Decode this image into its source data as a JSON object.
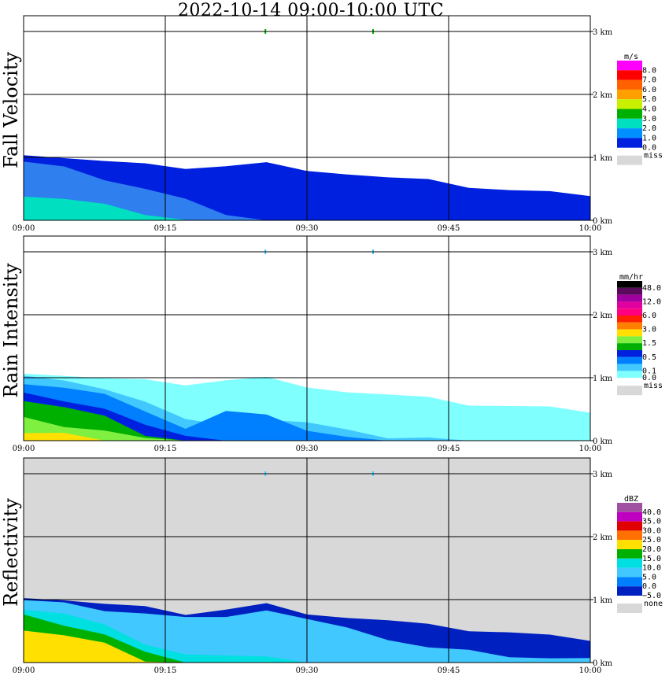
{
  "title": "2022-10-14   09:00-10:00 UTC",
  "chart_data": [
    {
      "type": "heatmap",
      "ylabel": "Fall Velocity",
      "x_ticks": [
        "09:00",
        "09:15",
        "09:30",
        "09:45",
        "10:00"
      ],
      "y_ticks": [
        "0 km",
        "1 km",
        "2 km",
        "3 km"
      ],
      "ylim_km": [
        0,
        3.15
      ],
      "grid": true,
      "background_color": "#ffffff",
      "legend": {
        "unit": "m/s",
        "placement": "right",
        "bins": [
          {
            "label": "8.0",
            "color": "#ff00ff"
          },
          {
            "label": "7.0",
            "color": "#ff0000"
          },
          {
            "label": "6.0",
            "color": "#ff6000"
          },
          {
            "label": "5.0",
            "color": "#ffa000"
          },
          {
            "label": "4.0",
            "color": "#c8f000"
          },
          {
            "label": "3.0",
            "color": "#00b000"
          },
          {
            "label": "2.0",
            "color": "#00e0c0"
          },
          {
            "label": "1.0",
            "color": "#0090ff"
          },
          {
            "label": "0.0",
            "color": "#0020e0"
          }
        ],
        "missing_label": "miss",
        "missing_color": "#d8d8d8"
      },
      "layers": [
        {
          "color": "#0020e0",
          "top_km": [
            1.07,
            1.0,
            0.93,
            0.87,
            0.84,
            0.86,
            0.9,
            0.82,
            0.74,
            0.67,
            0.62,
            0.54,
            0.48,
            0.44,
            0.42
          ],
          "bottom_km": 0
        },
        {
          "color": "#2f7fef",
          "top_km": [
            0.92,
            0.82,
            0.66,
            0.5,
            0.32,
            0.12,
            0.0,
            0,
            0,
            0,
            0,
            0,
            0,
            0,
            0
          ],
          "bottom_km": 0
        },
        {
          "color": "#00e0c0",
          "top_km": [
            0.4,
            0.34,
            0.24,
            0.12,
            0.02,
            0,
            0,
            0,
            0,
            0,
            0,
            0,
            0,
            0,
            0
          ],
          "bottom_km": 0
        }
      ],
      "sparse_marks": [
        {
          "time": "09:25.6",
          "height_km": 3.0,
          "color": "#00b000"
        },
        {
          "time": "09:37",
          "height_km": 3.0,
          "color": "#00b000"
        }
      ]
    },
    {
      "type": "heatmap",
      "ylabel": "Rain Intensity",
      "x_ticks": [
        "09:00",
        "09:15",
        "09:30",
        "09:45",
        "10:00"
      ],
      "y_ticks": [
        "0 km",
        "1 km",
        "2 km",
        "3 km"
      ],
      "ylim_km": [
        0,
        3.15
      ],
      "grid": true,
      "background_color": "#ffffff",
      "legend": {
        "unit": "mm/hr",
        "placement": "right",
        "bins": [
          {
            "label": "48.0",
            "color": "#000000"
          },
          {
            "label": "",
            "color": "#5a0a5a"
          },
          {
            "label": "12.0",
            "color": "#a000a0"
          },
          {
            "label": "",
            "color": "#e000a0"
          },
          {
            "label": "6.0",
            "color": "#ff0080"
          },
          {
            "label": "",
            "color": "#ff2000"
          },
          {
            "label": "3.0",
            "color": "#ff8000"
          },
          {
            "label": "",
            "color": "#ffe000"
          },
          {
            "label": "1.5",
            "color": "#80f040"
          },
          {
            "label": "",
            "color": "#00b000"
          },
          {
            "label": "0.5",
            "color": "#0020e0"
          },
          {
            "label": "",
            "color": "#0080ff"
          },
          {
            "label": "0.1",
            "color": "#40c8ff"
          },
          {
            "label": "0.0",
            "color": "#80ffff"
          }
        ],
        "missing_label": "miss",
        "missing_color": "#d8d8d8"
      },
      "layers": [
        {
          "color": "#80ffff",
          "top_km": [
            1.1,
            1.04,
            0.98,
            0.94,
            0.9,
            0.96,
            0.99,
            0.88,
            0.78,
            0.72,
            0.66,
            0.58,
            0.55,
            0.52,
            0.48
          ],
          "bottom_km": 0
        },
        {
          "color": "#40c8ff",
          "top_km": [
            1.02,
            0.92,
            0.84,
            0.62,
            0.32,
            0.28,
            0.34,
            0.28,
            0.14,
            0.06,
            0.05,
            0.0,
            0,
            0,
            0
          ],
          "bottom_km": 0
        },
        {
          "color": "#0080ff",
          "top_km": [
            0.92,
            0.84,
            0.72,
            0.5,
            0.2,
            0.46,
            0.38,
            0.18,
            0.06,
            0,
            0,
            0,
            0,
            0,
            0
          ],
          "bottom_km": 0
        },
        {
          "color": "#0020e0",
          "top_km": [
            0.74,
            0.66,
            0.52,
            0.24,
            0.04,
            0,
            0,
            0,
            0,
            0,
            0,
            0,
            0,
            0,
            0
          ],
          "bottom_km": 0
        },
        {
          "color": "#00b000",
          "top_km": [
            0.64,
            0.52,
            0.36,
            0.1,
            0,
            0,
            0,
            0,
            0,
            0,
            0,
            0,
            0,
            0,
            0
          ],
          "bottom_km": 0
        },
        {
          "color": "#80f040",
          "top_km": [
            0.34,
            0.24,
            0.16,
            0.02,
            0,
            0,
            0,
            0,
            0,
            0,
            0,
            0,
            0,
            0,
            0
          ],
          "bottom_km": 0
        },
        {
          "color": "#ffe000",
          "top_km": [
            0.12,
            0.1,
            0.0,
            0,
            0,
            0,
            0,
            0,
            0,
            0,
            0,
            0,
            0,
            0,
            0
          ],
          "bottom_km": 0
        }
      ],
      "sparse_marks": [
        {
          "time": "09:25.6",
          "height_km": 3.0,
          "color": "#40c8ff"
        },
        {
          "time": "09:37",
          "height_km": 3.0,
          "color": "#40c8ff"
        }
      ]
    },
    {
      "type": "heatmap",
      "ylabel": "Reflectivity",
      "x_ticks": [
        "09:00",
        "09:15",
        "09:30",
        "09:45",
        "10:00"
      ],
      "y_ticks": [
        "0 km",
        "1 km",
        "2 km",
        "3 km"
      ],
      "ylim_km": [
        0,
        3.15
      ],
      "grid": true,
      "background_color": "#d8d8d8",
      "legend": {
        "unit": "dBZ",
        "placement": "right",
        "bins": [
          {
            "label": "40.0",
            "color": "#a050a0"
          },
          {
            "label": "35.0",
            "color": "#c000c0"
          },
          {
            "label": "30.0",
            "color": "#e00000"
          },
          {
            "label": "25.0",
            "color": "#ff7000"
          },
          {
            "label": "20.0",
            "color": "#ffe000"
          },
          {
            "label": "15.0",
            "color": "#00b000"
          },
          {
            "label": "10.0",
            "color": "#00e0e0"
          },
          {
            "label": "5.0",
            "color": "#40c8ff"
          },
          {
            "label": "0.0",
            "color": "#0080ff"
          },
          {
            "label": "−5.0",
            "color": "#0020c0"
          }
        ],
        "missing_label": "none",
        "missing_color": "#d8d8d8"
      },
      "layers": [
        {
          "color": "#0020c0",
          "top_km": [
            1.06,
            1.0,
            0.92,
            0.86,
            0.78,
            0.84,
            0.92,
            0.8,
            0.72,
            0.66,
            0.58,
            0.52,
            0.48,
            0.42,
            0.38
          ],
          "bottom_km": 0
        },
        {
          "color": "#40c8ff",
          "top_km": [
            0.98,
            0.92,
            0.84,
            0.78,
            0.7,
            0.76,
            0.84,
            0.68,
            0.52,
            0.38,
            0.24,
            0.18,
            0.12,
            0.08,
            0.06
          ],
          "bottom_km": 0
        },
        {
          "color": "#00e0e0",
          "top_km": [
            0.86,
            0.78,
            0.58,
            0.32,
            0.14,
            0.1,
            0.06,
            0.02,
            0,
            0,
            0,
            0,
            0,
            0,
            0
          ],
          "bottom_km": 0
        },
        {
          "color": "#00b000",
          "top_km": [
            0.74,
            0.62,
            0.46,
            0.16,
            0.0,
            0,
            0,
            0,
            0,
            0,
            0,
            0,
            0,
            0,
            0
          ],
          "bottom_km": 0
        },
        {
          "color": "#ffe000",
          "top_km": [
            0.52,
            0.42,
            0.28,
            0.04,
            0,
            0,
            0,
            0,
            0,
            0,
            0,
            0,
            0,
            0,
            0
          ],
          "bottom_km": 0
        }
      ],
      "sparse_marks": [
        {
          "time": "09:25.6",
          "height_km": 3.0,
          "color": "#40c8ff"
        },
        {
          "time": "09:37",
          "height_km": 3.0,
          "color": "#40c8ff"
        }
      ]
    }
  ]
}
